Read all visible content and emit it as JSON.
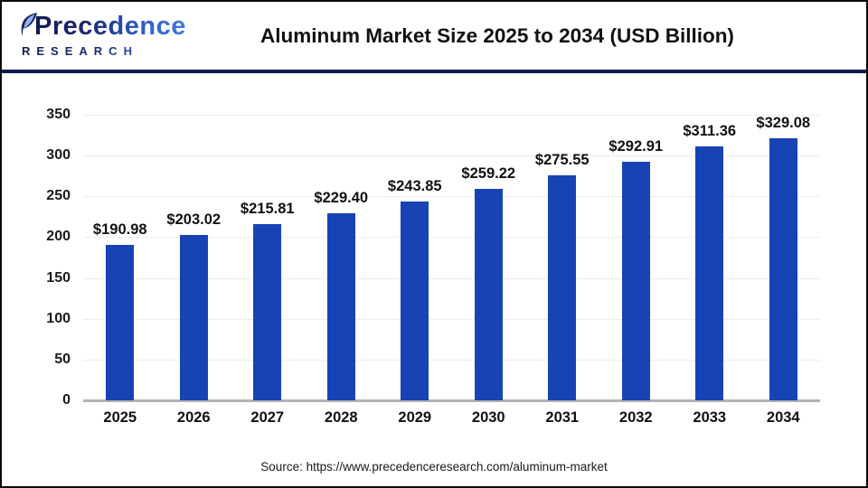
{
  "logo": {
    "name": "Precedence",
    "subtitle": "RESEARCH",
    "navy": "#131b52",
    "blue": "#2f62cf",
    "leaf_light": "#8fb3ef"
  },
  "header": {
    "title": "Aluminum Market Size 2025 to 2034 (USD Billion)"
  },
  "chart_data": {
    "type": "bar",
    "title": "Aluminum Market Size 2025 to 2034 (USD Billion)",
    "categories": [
      "2025",
      "2026",
      "2027",
      "2028",
      "2029",
      "2030",
      "2031",
      "2032",
      "2033",
      "2034"
    ],
    "values": [
      190.98,
      203.02,
      215.81,
      229.4,
      243.85,
      259.22,
      275.55,
      292.91,
      311.36,
      329.08
    ],
    "value_labels": [
      "$190.98",
      "$203.02",
      "$215.81",
      "$229.40",
      "$243.85",
      "$259.22",
      "$275.55",
      "$292.91",
      "$311.36",
      "$329.08"
    ],
    "xlabel": "",
    "ylabel": "",
    "ylim": [
      0,
      350
    ],
    "yticks": [
      350,
      300,
      250,
      200,
      150,
      100,
      50,
      0
    ],
    "grid": true,
    "legend": false,
    "bar_color": "#1843b4",
    "gridline_color": "#ececec",
    "baseline_color": "#b3b3b3"
  },
  "footer": {
    "source": "Source: https://www.precedenceresearch.com/aluminum-market"
  }
}
